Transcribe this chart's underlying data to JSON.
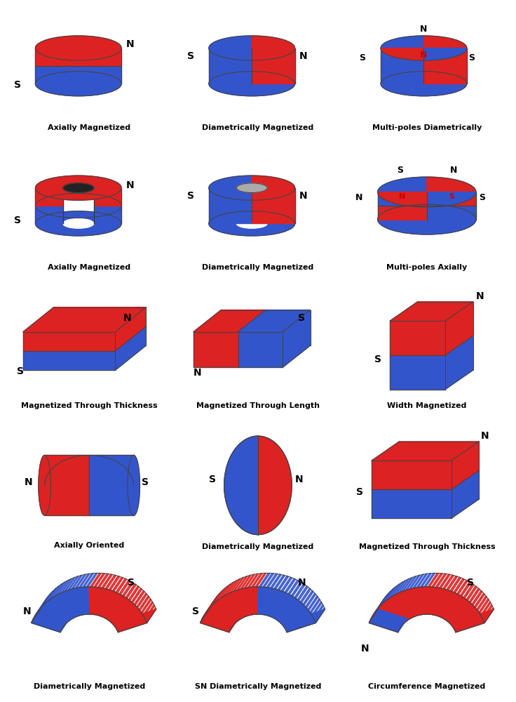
{
  "background": "#ffffff",
  "red": "#dd2222",
  "blue": "#3355cc",
  "labels": [
    [
      "Axially Magnetized",
      "Diametrically Magnetized",
      "Multi-poles Diametrically"
    ],
    [
      "Axially Magnetized",
      "Diametrically Magnetized",
      "Multi-poles Axially"
    ],
    [
      "Magnetized Through Thickness",
      "Magnetized Through Length",
      "Width Magnetized"
    ],
    [
      "Axially Oriented",
      "Diametrically Magnetized",
      "Magnetized Through Thickness"
    ],
    [
      "Diametrically Magnetized",
      "SN Diametrically Magnetized",
      "Circumference Magnetized"
    ]
  ]
}
